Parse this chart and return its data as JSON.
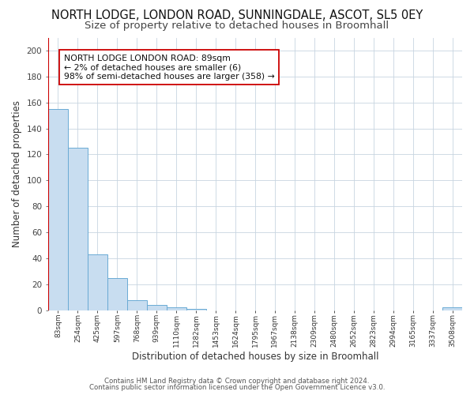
{
  "title": "NORTH LODGE, LONDON ROAD, SUNNINGDALE, ASCOT, SL5 0EY",
  "subtitle": "Size of property relative to detached houses in Broomhall",
  "xlabel": "Distribution of detached houses by size in Broomhall",
  "ylabel": "Number of detached properties",
  "footer_line1": "Contains HM Land Registry data © Crown copyright and database right 2024.",
  "footer_line2": "Contains public sector information licensed under the Open Government Licence v3.0.",
  "annotation_title": "NORTH LODGE LONDON ROAD: 89sqm",
  "annotation_line1": "← 2% of detached houses are smaller (6)",
  "annotation_line2": "98% of semi-detached houses are larger (358) →",
  "bar_labels": [
    "83sqm",
    "254sqm",
    "425sqm",
    "597sqm",
    "768sqm",
    "939sqm",
    "1110sqm",
    "1282sqm",
    "1453sqm",
    "1624sqm",
    "1795sqm",
    "1967sqm",
    "2138sqm",
    "2309sqm",
    "2480sqm",
    "2652sqm",
    "2823sqm",
    "2994sqm",
    "3165sqm",
    "3337sqm",
    "3508sqm"
  ],
  "bar_values": [
    155,
    125,
    43,
    25,
    8,
    4,
    2,
    1,
    0,
    0,
    0,
    0,
    0,
    0,
    0,
    0,
    0,
    0,
    0,
    0,
    2
  ],
  "bar_color": "#c8ddf0",
  "bar_edge_color": "#6aaad4",
  "vline_color": "#cc0000",
  "ylim": [
    0,
    210
  ],
  "yticks": [
    0,
    20,
    40,
    60,
    80,
    100,
    120,
    140,
    160,
    180,
    200
  ],
  "background_color": "#ffffff",
  "plot_bg_color": "#ffffff",
  "grid_color": "#c8d4e0",
  "title_fontsize": 10.5,
  "subtitle_fontsize": 9.5,
  "annotation_box_color": "#ffffff",
  "annotation_box_edge": "#cc0000"
}
